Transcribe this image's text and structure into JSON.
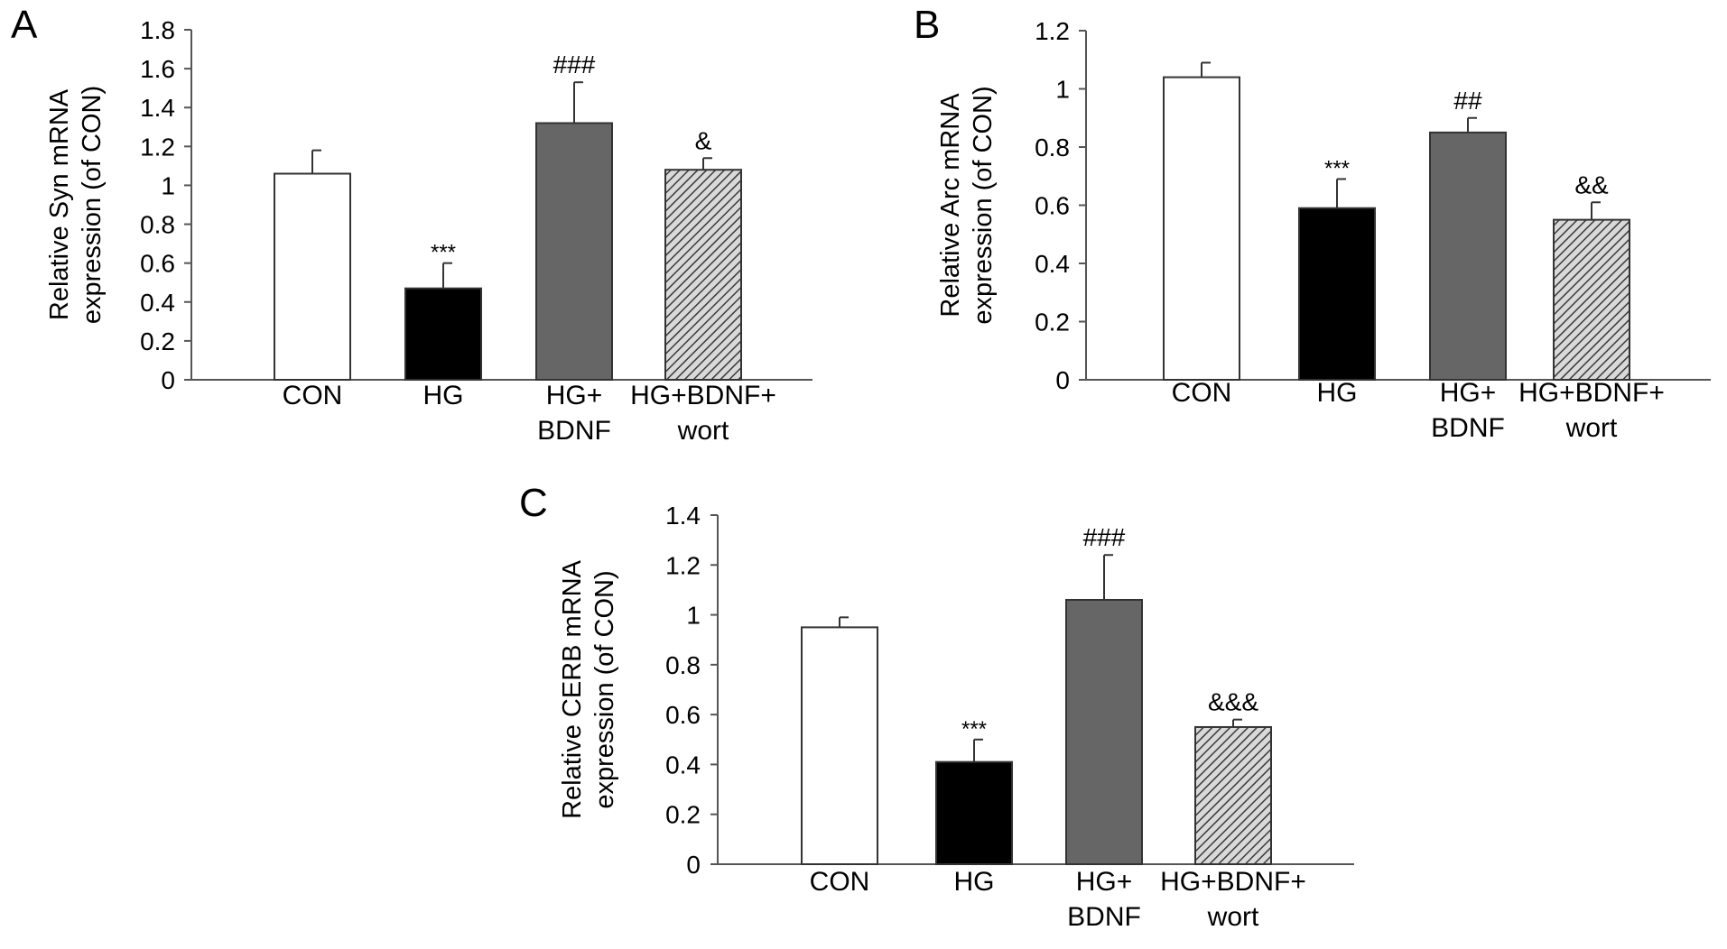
{
  "figure": {
    "panels": [
      "A",
      "B",
      "C"
    ]
  },
  "chart_data": [
    {
      "panel": "A",
      "type": "bar",
      "categories": [
        [
          "CON"
        ],
        [
          "HG"
        ],
        [
          "HG+",
          "BDNF"
        ],
        [
          "HG+BDNF+",
          "wort"
        ]
      ],
      "values": [
        1.06,
        0.47,
        1.32,
        1.08
      ],
      "errors": [
        0.12,
        0.13,
        0.21,
        0.06
      ],
      "annotations": [
        "",
        "***",
        "###",
        "&"
      ],
      "ylabel": [
        "Relative Syn mRNA",
        "expression (of CON)"
      ],
      "ylim": [
        0,
        1.8
      ],
      "yticks": [
        0,
        0.2,
        0.4,
        0.6,
        0.8,
        1,
        1.2,
        1.4,
        1.6,
        1.8
      ],
      "ytick_labels": [
        "0",
        "0.2",
        "0.4",
        "0.6",
        "0.8",
        "1",
        "1.2",
        "1.4",
        "1.6",
        "1.8"
      ],
      "grid": false,
      "bar_fills": [
        "white",
        "black",
        "gray",
        "hatch"
      ]
    },
    {
      "panel": "B",
      "type": "bar",
      "categories": [
        [
          "CON"
        ],
        [
          "HG"
        ],
        [
          "HG+",
          "BDNF"
        ],
        [
          "HG+BDNF+",
          "wort"
        ]
      ],
      "values": [
        1.04,
        0.59,
        0.85,
        0.55
      ],
      "errors": [
        0.05,
        0.1,
        0.05,
        0.06
      ],
      "annotations": [
        "",
        "***",
        "##",
        "&&"
      ],
      "ylabel": [
        "Relative Arc mRNA",
        "expression (of CON)"
      ],
      "ylim": [
        0,
        1.2
      ],
      "yticks": [
        0,
        0.2,
        0.4,
        0.6,
        0.8,
        1,
        1.2
      ],
      "ytick_labels": [
        "0",
        "0.2",
        "0.4",
        "0.6",
        "0.8",
        "1",
        "1.2"
      ],
      "grid": false,
      "bar_fills": [
        "white",
        "black",
        "gray",
        "hatch"
      ]
    },
    {
      "panel": "C",
      "type": "bar",
      "categories": [
        [
          "CON"
        ],
        [
          "HG"
        ],
        [
          "HG+",
          "BDNF"
        ],
        [
          "HG+BDNF+",
          "wort"
        ]
      ],
      "values": [
        0.95,
        0.41,
        1.06,
        0.55
      ],
      "errors": [
        0.04,
        0.09,
        0.18,
        0.03
      ],
      "annotations": [
        "",
        "***",
        "###",
        "&&&"
      ],
      "ylabel": [
        "Relative CERB mRNA",
        "expression (of CON)"
      ],
      "ylim": [
        0,
        1.4
      ],
      "yticks": [
        0,
        0.2,
        0.4,
        0.6,
        0.8,
        1,
        1.2,
        1.4
      ],
      "ytick_labels": [
        "0",
        "0.2",
        "0.4",
        "0.6",
        "0.8",
        "1",
        "1.2",
        "1.4"
      ],
      "grid": false,
      "bar_fills": [
        "white",
        "black",
        "gray",
        "hatch"
      ]
    }
  ],
  "colors": {
    "bar_outline": "#333333",
    "axis": "#555555",
    "white_bar": "#ffffff",
    "black_bar": "#000000",
    "gray_bar": "#666666",
    "hatch_bg": "#d9d9d9",
    "hatch_line": "#3a3a3a"
  }
}
